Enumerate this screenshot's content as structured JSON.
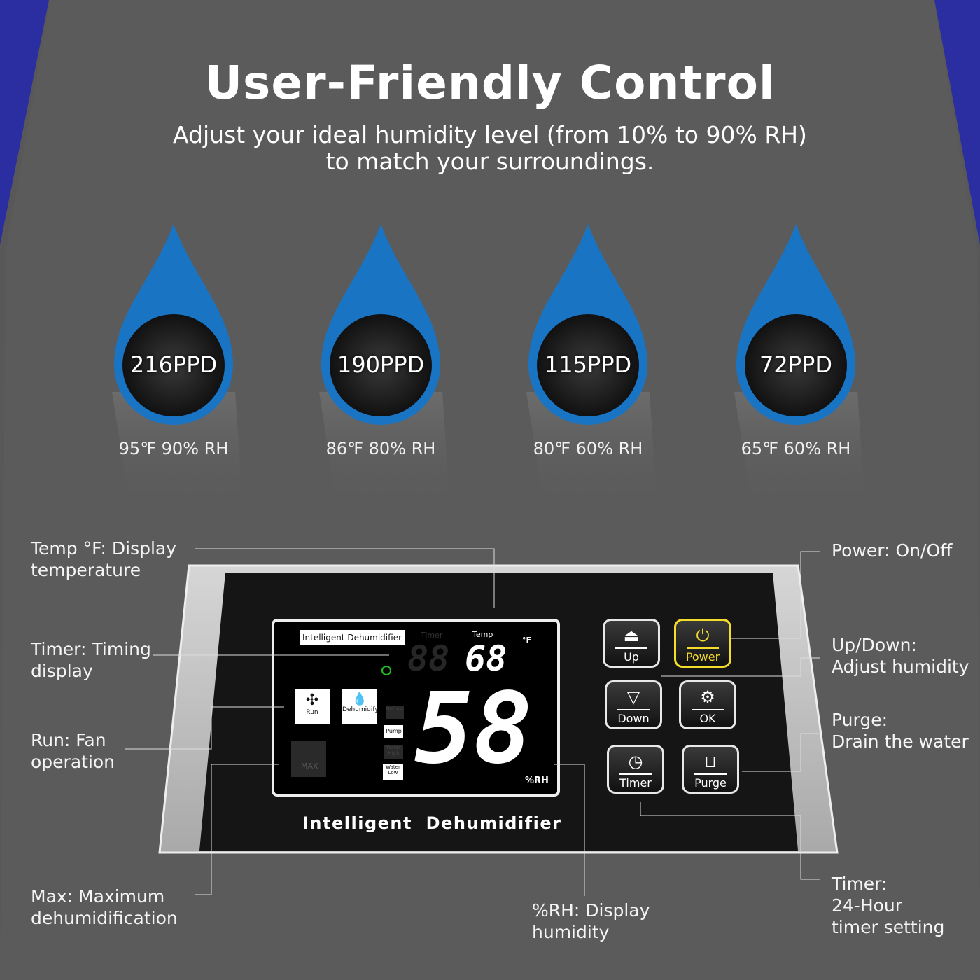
{
  "title": "User-Friendly Control",
  "subtitle_line1": "Adjust your ideal humidity level (from 10% to 90% RH)",
  "subtitle_line2": "to match your surroundings.",
  "colors": {
    "background": "#585858",
    "drop_blue": "#1a74c4",
    "accent_corner": "#2b2ea0",
    "power_yellow": "#f4dc2a",
    "indicator_green": "#22c022"
  },
  "drops": [
    {
      "capacity": "216PPD",
      "condition": "95℉ 90% RH"
    },
    {
      "capacity": "190PPD",
      "condition": "86℉ 80% RH"
    },
    {
      "capacity": "115PPD",
      "condition": "80℉ 60% RH"
    },
    {
      "capacity": "72PPD",
      "condition": "65℉ 60% RH"
    }
  ],
  "panel": {
    "brand_tag": "Intelligent Dehumidifier",
    "label_timer": "Timer",
    "label_temp": "Temp",
    "temp_unit": "°F",
    "temp_value": "68",
    "timer_value": "88",
    "humidity_value": "58",
    "humidity_unit": "%RH",
    "run": "Run",
    "dehumidify": "Dehumidify",
    "defrost": "Defrost",
    "pump": "Pump",
    "water_high": "Water High",
    "water_low": "Water Low",
    "max": "MAX",
    "footer": "Intelligent  Dehumidifier",
    "buttons": {
      "up": "Up",
      "power": "Power",
      "down": "Down",
      "ok": "OK",
      "timer": "Timer",
      "purge": "Purge"
    }
  },
  "callouts": {
    "temp": [
      "Temp °F: Display",
      "temperature"
    ],
    "timer": [
      "Timer: Timing",
      "display"
    ],
    "run": [
      "Run: Fan",
      "operation"
    ],
    "max": [
      "Max: Maximum",
      "dehumidification"
    ],
    "rh": [
      "%RH: Display",
      "humidity"
    ],
    "power": [
      "Power: On/Off"
    ],
    "updown": [
      "Up/Down:",
      "Adjust humidity"
    ],
    "purge": [
      "Purge:",
      "Drain the water"
    ],
    "timer24": [
      "Timer:",
      "24-Hour",
      "timer setting"
    ]
  }
}
